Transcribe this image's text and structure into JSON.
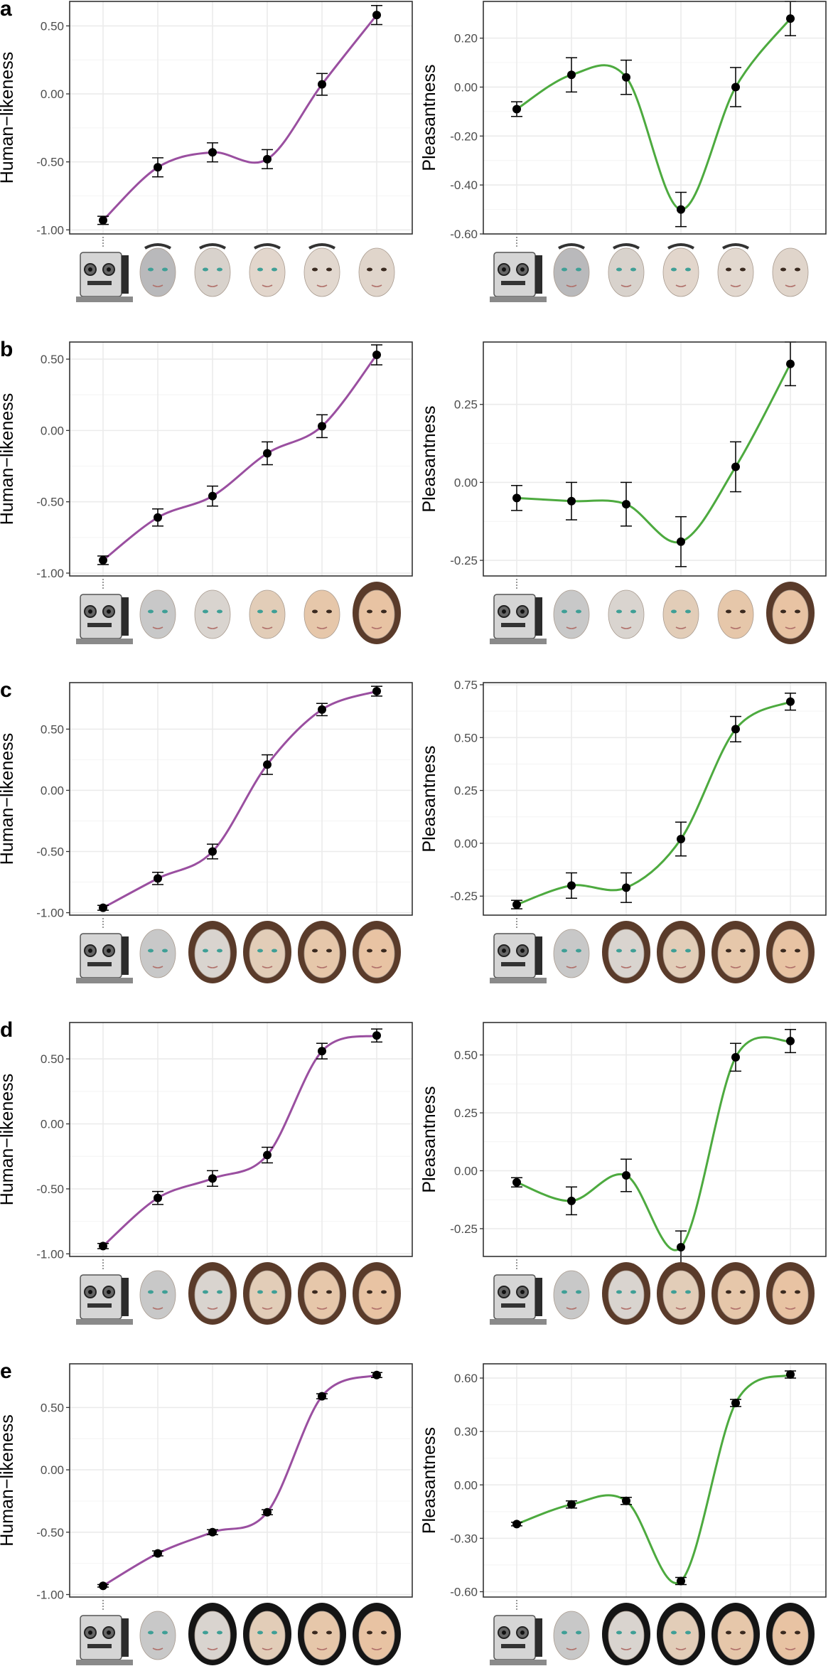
{
  "figure": {
    "panel_labels": [
      "a",
      "b",
      "c",
      "d",
      "e"
    ],
    "ylabel_left": "Human−likeness",
    "ylabel_right": "Pleasantness",
    "colors": {
      "human_likeness_line": "#9a4fa0",
      "pleasantness_line": "#4daa3f",
      "points": "#000000",
      "grid": "#ebebeb",
      "frame": "#333333"
    },
    "thumbnail_icons": [
      "mechanical-robot-face-icon",
      "android-face-icon",
      "android-face-icon",
      "android-face-icon",
      "human-like-face-icon",
      "human-face-icon"
    ]
  },
  "chart_data": [
    {
      "panel": "a",
      "type": "line",
      "ylabel": "Human−likeness",
      "color": "#9a4fa0",
      "x": [
        1,
        2,
        3,
        4,
        5,
        6
      ],
      "values": [
        -0.93,
        -0.54,
        -0.43,
        -0.48,
        0.07,
        0.58
      ],
      "error": [
        0.03,
        0.07,
        0.07,
        0.07,
        0.08,
        0.07
      ],
      "ylim": [
        -1.03,
        0.68
      ],
      "yticks": [
        -1.0,
        -0.5,
        0.0,
        0.5
      ],
      "ytick_labels": [
        "-1.00",
        "-0.50",
        "0.00",
        "0.50"
      ],
      "grid": true
    },
    {
      "panel": "a",
      "type": "line",
      "ylabel": "Pleasantness",
      "color": "#4daa3f",
      "x": [
        1,
        2,
        3,
        4,
        5,
        6
      ],
      "values": [
        -0.09,
        0.05,
        0.04,
        -0.5,
        0.0,
        0.28
      ],
      "error": [
        0.03,
        0.07,
        0.07,
        0.07,
        0.08,
        0.07
      ],
      "ylim": [
        -0.6,
        0.35
      ],
      "yticks": [
        -0.6,
        -0.4,
        -0.2,
        0.0,
        0.2
      ],
      "ytick_labels": [
        "-0.60",
        "-0.40",
        "-0.20",
        "0.00",
        "0.20"
      ],
      "grid": true
    },
    {
      "panel": "b",
      "type": "line",
      "ylabel": "Human−likeness",
      "color": "#9a4fa0",
      "x": [
        1,
        2,
        3,
        4,
        5,
        6
      ],
      "values": [
        -0.91,
        -0.61,
        -0.46,
        -0.16,
        0.03,
        0.53
      ],
      "error": [
        0.03,
        0.06,
        0.07,
        0.08,
        0.08,
        0.07
      ],
      "ylim": [
        -1.02,
        0.62
      ],
      "yticks": [
        -1.0,
        -0.5,
        0.0,
        0.5
      ],
      "ytick_labels": [
        "-1.00",
        "-0.50",
        "0.00",
        "0.50"
      ],
      "grid": true
    },
    {
      "panel": "b",
      "type": "line",
      "ylabel": "Pleasantness",
      "color": "#4daa3f",
      "x": [
        1,
        2,
        3,
        4,
        5,
        6
      ],
      "values": [
        -0.05,
        -0.06,
        -0.07,
        -0.19,
        0.05,
        0.38
      ],
      "error": [
        0.04,
        0.06,
        0.07,
        0.08,
        0.08,
        0.07
      ],
      "ylim": [
        -0.3,
        0.45
      ],
      "yticks": [
        -0.25,
        0.0,
        0.25
      ],
      "ytick_labels": [
        "-0.25",
        "0.00",
        "0.25"
      ],
      "grid": true
    },
    {
      "panel": "c",
      "type": "line",
      "ylabel": "Human−likeness",
      "color": "#9a4fa0",
      "x": [
        1,
        2,
        3,
        4,
        5,
        6
      ],
      "values": [
        -0.96,
        -0.72,
        -0.5,
        0.21,
        0.66,
        0.81
      ],
      "error": [
        0.02,
        0.05,
        0.06,
        0.08,
        0.05,
        0.04
      ],
      "ylim": [
        -1.02,
        0.88
      ],
      "yticks": [
        -1.0,
        -0.5,
        0.0,
        0.5
      ],
      "ytick_labels": [
        "-1.00",
        "-0.50",
        "0.00",
        "0.50"
      ],
      "grid": true
    },
    {
      "panel": "c",
      "type": "line",
      "ylabel": "Pleasantness",
      "color": "#4daa3f",
      "x": [
        1,
        2,
        3,
        4,
        5,
        6
      ],
      "values": [
        -0.29,
        -0.2,
        -0.21,
        0.02,
        0.54,
        0.67
      ],
      "error": [
        0.02,
        0.06,
        0.07,
        0.08,
        0.06,
        0.04
      ],
      "ylim": [
        -0.34,
        0.76
      ],
      "yticks": [
        -0.25,
        0.0,
        0.25,
        0.5,
        0.75
      ],
      "ytick_labels": [
        "-0.25",
        "0.00",
        "0.25",
        "0.50",
        "0.75"
      ],
      "grid": true
    },
    {
      "panel": "d",
      "type": "line",
      "ylabel": "Human−likeness",
      "color": "#9a4fa0",
      "x": [
        1,
        2,
        3,
        4,
        5,
        6
      ],
      "values": [
        -0.94,
        -0.57,
        -0.42,
        -0.24,
        0.56,
        0.68
      ],
      "error": [
        0.02,
        0.05,
        0.06,
        0.06,
        0.06,
        0.05
      ],
      "ylim": [
        -1.02,
        0.78
      ],
      "yticks": [
        -1.0,
        -0.5,
        0.0,
        0.5
      ],
      "ytick_labels": [
        "-1.00",
        "-0.50",
        "0.00",
        "0.50"
      ],
      "grid": true
    },
    {
      "panel": "d",
      "type": "line",
      "ylabel": "Pleasantness",
      "color": "#4daa3f",
      "x": [
        1,
        2,
        3,
        4,
        5,
        6
      ],
      "values": [
        -0.05,
        -0.13,
        -0.02,
        -0.33,
        0.49,
        0.56
      ],
      "error": [
        0.02,
        0.06,
        0.07,
        0.07,
        0.06,
        0.05
      ],
      "ylim": [
        -0.37,
        0.64
      ],
      "yticks": [
        -0.25,
        0.0,
        0.25,
        0.5
      ],
      "ytick_labels": [
        "-0.25",
        "0.00",
        "0.25",
        "0.50"
      ],
      "grid": true
    },
    {
      "panel": "e",
      "type": "line",
      "ylabel": "Human−likeness",
      "color": "#9a4fa0",
      "x": [
        1,
        2,
        3,
        4,
        5,
        6
      ],
      "values": [
        -0.93,
        -0.67,
        -0.5,
        -0.34,
        0.59,
        0.76
      ],
      "error": [
        0.01,
        0.02,
        0.02,
        0.02,
        0.02,
        0.02
      ],
      "ylim": [
        -1.02,
        0.85
      ],
      "yticks": [
        -1.0,
        -0.5,
        0.0,
        0.5
      ],
      "ytick_labels": [
        "-1.00",
        "-0.50",
        "0.00",
        "0.50"
      ],
      "grid": true
    },
    {
      "panel": "e",
      "type": "line",
      "ylabel": "Pleasantness",
      "color": "#4daa3f",
      "x": [
        1,
        2,
        3,
        4,
        5,
        6
      ],
      "values": [
        -0.22,
        -0.11,
        -0.09,
        -0.54,
        0.46,
        0.62
      ],
      "error": [
        0.01,
        0.02,
        0.02,
        0.02,
        0.02,
        0.02
      ],
      "ylim": [
        -0.63,
        0.68
      ],
      "yticks": [
        -0.6,
        -0.3,
        0.0,
        0.3,
        0.6
      ],
      "ytick_labels": [
        "-0.60",
        "-0.30",
        "0.00",
        "0.30",
        "0.60"
      ],
      "grid": true
    }
  ]
}
